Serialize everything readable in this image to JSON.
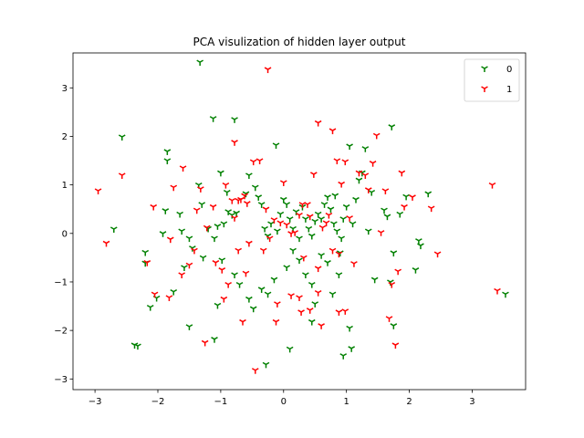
{
  "chart_data": {
    "type": "scatter",
    "title": "PCA visulization of hidden layer output",
    "xlabel": "",
    "ylabel": "",
    "xlim": [
      -3.35,
      3.85
    ],
    "ylim": [
      -3.22,
      3.72
    ],
    "xticks": [
      -3,
      -2,
      -1,
      0,
      1,
      2,
      3
    ],
    "yticks": [
      -3,
      -2,
      -1,
      0,
      1,
      2,
      3
    ],
    "grid": false,
    "legend_position": "top-right",
    "marker": "tri_down",
    "series": [
      {
        "name": "0",
        "color": "#008000",
        "points": [
          [
            -1.33,
            3.53
          ],
          [
            -2.57,
            1.99
          ],
          [
            -1.85,
            1.69
          ],
          [
            -1.85,
            1.5
          ],
          [
            -1.12,
            2.37
          ],
          [
            -0.78,
            2.35
          ],
          [
            -0.12,
            1.82
          ],
          [
            1.72,
            2.2
          ],
          [
            -2.7,
            0.09
          ],
          [
            -2.2,
            -0.39
          ],
          [
            -2.2,
            -0.61
          ],
          [
            -2.12,
            -1.52
          ],
          [
            -2.02,
            -1.33
          ],
          [
            -2.37,
            -2.3
          ],
          [
            -2.32,
            -2.32
          ],
          [
            -1.92,
            0.0
          ],
          [
            -1.88,
            0.47
          ],
          [
            -1.62,
            0.05
          ],
          [
            -1.5,
            -0.1
          ],
          [
            -1.35,
            1.0
          ],
          [
            -1.3,
            0.6
          ],
          [
            -1.2,
            0.1
          ],
          [
            -1.1,
            -0.1
          ],
          [
            -1.05,
            0.15
          ],
          [
            -0.95,
            0.2
          ],
          [
            -0.88,
            0.45
          ],
          [
            -0.82,
            0.38
          ],
          [
            -0.75,
            0.42
          ],
          [
            -1.0,
            1.25
          ],
          [
            -0.9,
            0.85
          ],
          [
            -0.55,
            1.2
          ],
          [
            -0.45,
            0.95
          ],
          [
            -0.4,
            0.75
          ],
          [
            -0.35,
            0.6
          ],
          [
            -0.3,
            0.1
          ],
          [
            -0.25,
            -0.05
          ],
          [
            -0.2,
            0.2
          ],
          [
            -0.1,
            0.05
          ],
          [
            -0.05,
            0.4
          ],
          [
            0.05,
            0.6
          ],
          [
            0.1,
            0.3
          ],
          [
            0.15,
            0.1
          ],
          [
            0.2,
            0.45
          ],
          [
            0.25,
            -0.1
          ],
          [
            0.3,
            0.55
          ],
          [
            0.35,
            0.3
          ],
          [
            0.4,
            0.1
          ],
          [
            0.45,
            -0.05
          ],
          [
            0.5,
            0.25
          ],
          [
            0.55,
            0.4
          ],
          [
            0.6,
            0.3
          ],
          [
            0.65,
            0.6
          ],
          [
            0.7,
            0.75
          ],
          [
            0.75,
            0.5
          ],
          [
            0.8,
            0.2
          ],
          [
            0.85,
            0.05
          ],
          [
            0.9,
            -0.4
          ],
          [
            0.95,
            0.3
          ],
          [
            1.0,
            0.55
          ],
          [
            1.05,
            1.8
          ],
          [
            1.1,
            0.2
          ],
          [
            1.15,
            0.7
          ],
          [
            1.2,
            1.1
          ],
          [
            1.25,
            1.25
          ],
          [
            1.3,
            1.75
          ],
          [
            1.35,
            0.05
          ],
          [
            1.4,
            0.85
          ],
          [
            1.45,
            -0.95
          ],
          [
            1.6,
            0.48
          ],
          [
            1.65,
            0.35
          ],
          [
            1.7,
            -1.0
          ],
          [
            1.75,
            -0.4
          ],
          [
            1.85,
            0.4
          ],
          [
            1.95,
            0.76
          ],
          [
            2.1,
            -0.75
          ],
          [
            2.15,
            -0.15
          ],
          [
            2.18,
            -0.25
          ],
          [
            2.3,
            0.82
          ],
          [
            3.53,
            -1.25
          ],
          [
            -1.65,
            0.4
          ],
          [
            -1.58,
            -0.7
          ],
          [
            -1.45,
            -0.3
          ],
          [
            -1.28,
            -0.5
          ],
          [
            -1.05,
            -1.48
          ],
          [
            -0.98,
            -0.55
          ],
          [
            -0.78,
            -0.85
          ],
          [
            -0.7,
            -1.05
          ],
          [
            -0.55,
            -1.35
          ],
          [
            -0.48,
            -1.55
          ],
          [
            -0.35,
            -1.15
          ],
          [
            -0.25,
            -1.25
          ],
          [
            -0.15,
            -0.95
          ],
          [
            0.05,
            -0.7
          ],
          [
            0.15,
            -0.35
          ],
          [
            0.25,
            -0.55
          ],
          [
            0.35,
            -0.85
          ],
          [
            0.45,
            -1.05
          ],
          [
            0.5,
            -1.45
          ],
          [
            0.6,
            -0.45
          ],
          [
            0.7,
            -0.6
          ],
          [
            0.78,
            -1.25
          ],
          [
            0.88,
            -0.85
          ],
          [
            1.05,
            -1.95
          ],
          [
            1.08,
            -2.37
          ],
          [
            0.95,
            -2.52
          ],
          [
            1.75,
            -1.9
          ],
          [
            0.45,
            -1.82
          ],
          [
            0.1,
            -2.38
          ],
          [
            -0.28,
            -2.7
          ],
          [
            -1.1,
            -2.18
          ],
          [
            -1.5,
            -1.92
          ],
          [
            -1.75,
            -1.2
          ],
          [
            -0.6,
            0.82
          ],
          [
            0.0,
            0.7
          ],
          [
            0.82,
            0.78
          ],
          [
            0.92,
            -0.1
          ]
        ]
      },
      {
        "name": "1",
        "color": "#ff0000",
        "points": [
          [
            -0.25,
            3.38
          ],
          [
            0.55,
            2.28
          ],
          [
            0.78,
            2.12
          ],
          [
            -0.78,
            1.88
          ],
          [
            -2.57,
            1.2
          ],
          [
            -2.95,
            0.88
          ],
          [
            -2.82,
            -0.2
          ],
          [
            -2.17,
            -0.6
          ],
          [
            -2.05,
            -1.25
          ],
          [
            -1.82,
            -1.32
          ],
          [
            -1.8,
            -0.12
          ],
          [
            -1.75,
            0.95
          ],
          [
            -1.6,
            1.35
          ],
          [
            -2.07,
            0.55
          ],
          [
            -1.5,
            -0.65
          ],
          [
            -1.38,
            0.48
          ],
          [
            -1.32,
            0.92
          ],
          [
            -1.22,
            0.12
          ],
          [
            -1.12,
            0.55
          ],
          [
            -1.08,
            -0.6
          ],
          [
            -0.98,
            -0.75
          ],
          [
            -0.92,
            1.0
          ],
          [
            -0.88,
            -1.05
          ],
          [
            -0.82,
            0.68
          ],
          [
            -0.78,
            0.32
          ],
          [
            -0.72,
            0.68
          ],
          [
            -0.68,
            0.7
          ],
          [
            -0.62,
            0.78
          ],
          [
            -0.58,
            0.62
          ],
          [
            -0.55,
            -0.2
          ],
          [
            -0.48,
            1.48
          ],
          [
            -0.38,
            1.5
          ],
          [
            -0.32,
            -0.35
          ],
          [
            -0.28,
            0.5
          ],
          [
            -0.22,
            -0.1
          ],
          [
            -0.15,
            0.28
          ],
          [
            -0.05,
            0.22
          ],
          [
            0.0,
            1.05
          ],
          [
            0.05,
            0.18
          ],
          [
            0.12,
            0.0
          ],
          [
            0.18,
            0.02
          ],
          [
            0.25,
            0.38
          ],
          [
            0.32,
            -0.5
          ],
          [
            0.38,
            0.6
          ],
          [
            0.42,
            0.35
          ],
          [
            0.48,
            1.22
          ],
          [
            0.55,
            -0.72
          ],
          [
            0.62,
            0.12
          ],
          [
            0.68,
            0.22
          ],
          [
            0.72,
            0.38
          ],
          [
            0.78,
            -0.35
          ],
          [
            0.85,
            1.5
          ],
          [
            0.88,
            -0.42
          ],
          [
            0.92,
            1.02
          ],
          [
            0.98,
            1.48
          ],
          [
            1.05,
            0.32
          ],
          [
            1.12,
            -0.62
          ],
          [
            1.2,
            1.25
          ],
          [
            1.3,
            1.2
          ],
          [
            1.35,
            0.9
          ],
          [
            1.42,
            1.45
          ],
          [
            1.48,
            2.02
          ],
          [
            1.55,
            0.02
          ],
          [
            1.62,
            0.88
          ],
          [
            1.68,
            -1.75
          ],
          [
            1.72,
            -1.05
          ],
          [
            1.78,
            -2.3
          ],
          [
            1.82,
            -0.78
          ],
          [
            1.88,
            1.25
          ],
          [
            1.92,
            0.55
          ],
          [
            2.05,
            0.75
          ],
          [
            2.35,
            0.52
          ],
          [
            2.45,
            -0.42
          ],
          [
            3.32,
            1.0
          ],
          [
            3.4,
            -1.18
          ],
          [
            -1.25,
            -2.25
          ],
          [
            -0.65,
            -1.82
          ],
          [
            -0.45,
            -2.82
          ],
          [
            -0.12,
            -1.82
          ],
          [
            0.25,
            -1.32
          ],
          [
            0.28,
            -1.62
          ],
          [
            0.42,
            -1.58
          ],
          [
            0.55,
            -1.22
          ],
          [
            0.6,
            -1.9
          ],
          [
            0.88,
            -1.62
          ],
          [
            0.98,
            -1.6
          ],
          [
            0.12,
            -1.28
          ],
          [
            -0.1,
            -1.45
          ],
          [
            -0.6,
            -0.82
          ],
          [
            -0.72,
            -0.35
          ],
          [
            -0.95,
            -1.35
          ],
          [
            -1.42,
            -0.35
          ],
          [
            -1.62,
            -0.85
          ],
          [
            0.3,
            0.6
          ]
        ]
      }
    ]
  }
}
